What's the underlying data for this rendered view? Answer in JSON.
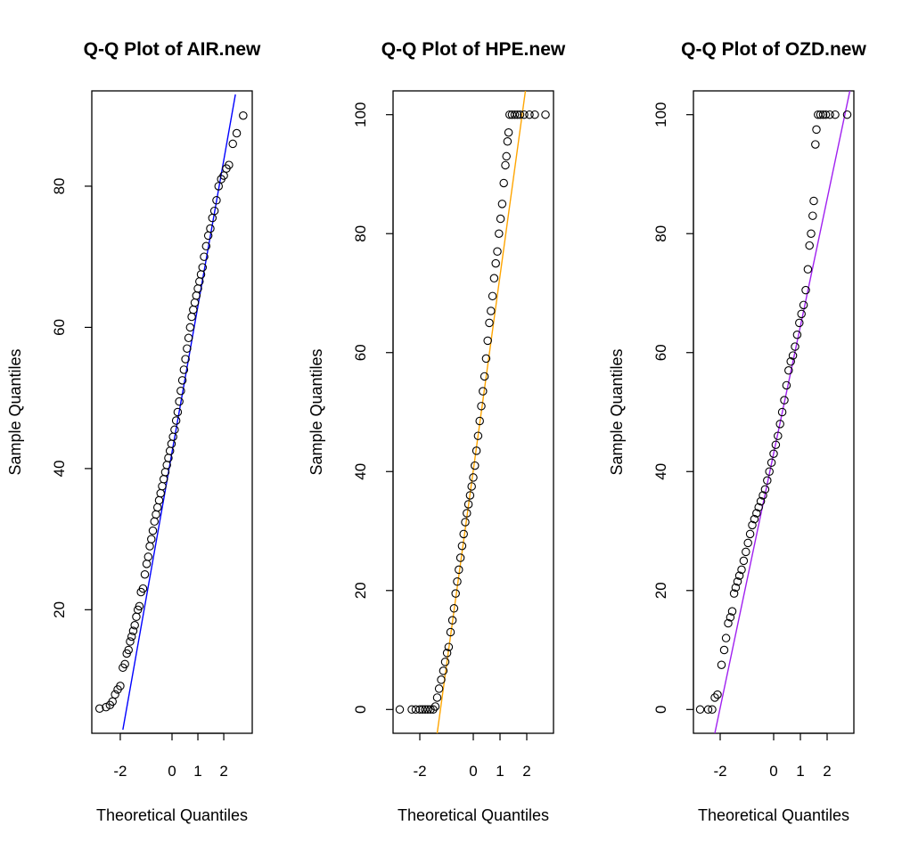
{
  "chart_data": [
    {
      "type": "scatter",
      "title": "Q-Q Plot of AIR.new",
      "xlabel": "Theoretical Quantiles",
      "ylabel": "Sample Quantiles",
      "xlim": [
        -3.1,
        3.1
      ],
      "ylim": [
        2.5,
        93.5
      ],
      "xticks": [
        -2,
        0,
        1,
        2
      ],
      "yticks": [
        20,
        40,
        60,
        80
      ],
      "line_color": "#0000ff",
      "qqline": {
        "points": [
          [
            -1.9,
            3
          ],
          [
            2.45,
            93
          ]
        ]
      },
      "points": [
        [
          -2.8,
          6.0
        ],
        [
          -2.55,
          6.2
        ],
        [
          -2.4,
          6.5
        ],
        [
          -2.3,
          7.0
        ],
        [
          -2.2,
          8.0
        ],
        [
          -2.1,
          8.7
        ],
        [
          -2.0,
          9.2
        ],
        [
          -1.9,
          11.8
        ],
        [
          -1.82,
          12.3
        ],
        [
          -1.75,
          13.8
        ],
        [
          -1.68,
          14.3
        ],
        [
          -1.62,
          15.5
        ],
        [
          -1.56,
          16.2
        ],
        [
          -1.5,
          17.0
        ],
        [
          -1.44,
          17.8
        ],
        [
          -1.38,
          19.0
        ],
        [
          -1.32,
          20.0
        ],
        [
          -1.26,
          20.5
        ],
        [
          -1.2,
          22.5
        ],
        [
          -1.12,
          23.0
        ],
        [
          -1.05,
          25.0
        ],
        [
          -0.98,
          26.5
        ],
        [
          -0.92,
          27.5
        ],
        [
          -0.86,
          29.0
        ],
        [
          -0.8,
          30.0
        ],
        [
          -0.74,
          31.2
        ],
        [
          -0.68,
          32.5
        ],
        [
          -0.62,
          33.5
        ],
        [
          -0.56,
          34.5
        ],
        [
          -0.5,
          35.5
        ],
        [
          -0.44,
          36.5
        ],
        [
          -0.38,
          37.5
        ],
        [
          -0.32,
          38.5
        ],
        [
          -0.26,
          39.5
        ],
        [
          -0.2,
          40.5
        ],
        [
          -0.14,
          41.5
        ],
        [
          -0.08,
          42.5
        ],
        [
          -0.02,
          43.5
        ],
        [
          0.04,
          44.5
        ],
        [
          0.1,
          45.5
        ],
        [
          0.16,
          46.8
        ],
        [
          0.22,
          48.0
        ],
        [
          0.28,
          49.5
        ],
        [
          0.34,
          51.0
        ],
        [
          0.4,
          52.5
        ],
        [
          0.46,
          54.0
        ],
        [
          0.52,
          55.5
        ],
        [
          0.58,
          57.0
        ],
        [
          0.64,
          58.5
        ],
        [
          0.7,
          60.0
        ],
        [
          0.76,
          61.5
        ],
        [
          0.82,
          62.5
        ],
        [
          0.88,
          63.5
        ],
        [
          0.94,
          64.5
        ],
        [
          1.0,
          65.5
        ],
        [
          1.06,
          66.5
        ],
        [
          1.12,
          67.5
        ],
        [
          1.18,
          68.5
        ],
        [
          1.24,
          70.0
        ],
        [
          1.32,
          71.5
        ],
        [
          1.4,
          73.0
        ],
        [
          1.48,
          74.0
        ],
        [
          1.56,
          75.5
        ],
        [
          1.64,
          76.5
        ],
        [
          1.72,
          78.0
        ],
        [
          1.8,
          80.0
        ],
        [
          1.9,
          81.0
        ],
        [
          2.0,
          81.5
        ],
        [
          2.1,
          82.5
        ],
        [
          2.2,
          83.0
        ],
        [
          2.35,
          86.0
        ],
        [
          2.5,
          87.5
        ],
        [
          2.75,
          90.0
        ]
      ]
    },
    {
      "type": "scatter",
      "title": "Q-Q Plot of HPE.new",
      "xlabel": "Theoretical Quantiles",
      "ylabel": "Sample Quantiles",
      "xlim": [
        -3.0,
        3.0
      ],
      "ylim": [
        -4,
        104
      ],
      "xticks": [
        -2,
        0,
        1,
        2
      ],
      "yticks": [
        0,
        20,
        40,
        60,
        80,
        100
      ],
      "line_color": "#ffa500",
      "qqline": {
        "points": [
          [
            -1.35,
            -4
          ],
          [
            1.95,
            104
          ]
        ]
      },
      "points": [
        [
          -2.75,
          0
        ],
        [
          -2.3,
          0
        ],
        [
          -2.15,
          0
        ],
        [
          -2.0,
          0
        ],
        [
          -1.9,
          0
        ],
        [
          -1.8,
          0
        ],
        [
          -1.7,
          0
        ],
        [
          -1.6,
          0
        ],
        [
          -1.5,
          0
        ],
        [
          -1.42,
          0.5
        ],
        [
          -1.35,
          2.0
        ],
        [
          -1.28,
          3.5
        ],
        [
          -1.2,
          5.0
        ],
        [
          -1.12,
          6.5
        ],
        [
          -1.05,
          8.0
        ],
        [
          -0.98,
          9.5
        ],
        [
          -0.92,
          10.5
        ],
        [
          -0.85,
          13.0
        ],
        [
          -0.78,
          15.0
        ],
        [
          -0.72,
          17.0
        ],
        [
          -0.66,
          19.5
        ],
        [
          -0.6,
          21.5
        ],
        [
          -0.54,
          23.5
        ],
        [
          -0.48,
          25.5
        ],
        [
          -0.42,
          27.5
        ],
        [
          -0.36,
          29.5
        ],
        [
          -0.3,
          31.5
        ],
        [
          -0.24,
          33.0
        ],
        [
          -0.18,
          34.5
        ],
        [
          -0.12,
          36.0
        ],
        [
          -0.06,
          37.5
        ],
        [
          0.0,
          39.0
        ],
        [
          0.06,
          41.0
        ],
        [
          0.12,
          43.5
        ],
        [
          0.18,
          46.0
        ],
        [
          0.24,
          48.5
        ],
        [
          0.3,
          51.0
        ],
        [
          0.36,
          53.5
        ],
        [
          0.42,
          56.0
        ],
        [
          0.48,
          59.0
        ],
        [
          0.54,
          62.0
        ],
        [
          0.6,
          65.0
        ],
        [
          0.66,
          67.0
        ],
        [
          0.72,
          69.5
        ],
        [
          0.78,
          72.5
        ],
        [
          0.84,
          75.0
        ],
        [
          0.9,
          77.0
        ],
        [
          0.96,
          80.0
        ],
        [
          1.02,
          82.5
        ],
        [
          1.08,
          85.0
        ],
        [
          1.14,
          88.5
        ],
        [
          1.2,
          91.5
        ],
        [
          1.24,
          93.0
        ],
        [
          1.28,
          95.5
        ],
        [
          1.32,
          97.0
        ],
        [
          1.36,
          100
        ],
        [
          1.45,
          100
        ],
        [
          1.55,
          100
        ],
        [
          1.65,
          100
        ],
        [
          1.75,
          100
        ],
        [
          1.9,
          100
        ],
        [
          2.1,
          100
        ],
        [
          2.3,
          100
        ],
        [
          2.7,
          100
        ]
      ]
    },
    {
      "type": "scatter",
      "title": "Q-Q Plot of OZD.new",
      "xlabel": "Theoretical Quantiles",
      "ylabel": "Sample Quantiles",
      "xlim": [
        -3.0,
        3.0
      ],
      "ylim": [
        -4,
        104
      ],
      "xticks": [
        -2,
        0,
        1,
        2
      ],
      "yticks": [
        0,
        20,
        40,
        60,
        80,
        100
      ],
      "line_color": "#a020f0",
      "qqline": {
        "points": [
          [
            -2.2,
            -4
          ],
          [
            2.85,
            104
          ]
        ]
      },
      "points": [
        [
          -2.75,
          0
        ],
        [
          -2.45,
          0
        ],
        [
          -2.3,
          0
        ],
        [
          -2.2,
          2.0
        ],
        [
          -2.1,
          2.5
        ],
        [
          -1.95,
          7.5
        ],
        [
          -1.85,
          10.0
        ],
        [
          -1.78,
          12.0
        ],
        [
          -1.7,
          14.5
        ],
        [
          -1.62,
          15.5
        ],
        [
          -1.55,
          16.5
        ],
        [
          -1.48,
          19.5
        ],
        [
          -1.42,
          20.5
        ],
        [
          -1.35,
          21.5
        ],
        [
          -1.28,
          22.5
        ],
        [
          -1.2,
          23.5
        ],
        [
          -1.12,
          25.0
        ],
        [
          -1.04,
          26.5
        ],
        [
          -0.96,
          28.0
        ],
        [
          -0.88,
          29.5
        ],
        [
          -0.8,
          31.0
        ],
        [
          -0.72,
          32.0
        ],
        [
          -0.64,
          33.0
        ],
        [
          -0.56,
          34.0
        ],
        [
          -0.48,
          35.0
        ],
        [
          -0.4,
          36.0
        ],
        [
          -0.32,
          37.0
        ],
        [
          -0.24,
          38.5
        ],
        [
          -0.16,
          40.0
        ],
        [
          -0.08,
          41.5
        ],
        [
          0.0,
          43.0
        ],
        [
          0.08,
          44.5
        ],
        [
          0.16,
          46.0
        ],
        [
          0.24,
          48.0
        ],
        [
          0.32,
          50.0
        ],
        [
          0.4,
          52.0
        ],
        [
          0.48,
          54.5
        ],
        [
          0.56,
          57.0
        ],
        [
          0.64,
          58.5
        ],
        [
          0.72,
          59.5
        ],
        [
          0.8,
          61.0
        ],
        [
          0.88,
          63.0
        ],
        [
          0.96,
          65.0
        ],
        [
          1.04,
          66.5
        ],
        [
          1.12,
          68.0
        ],
        [
          1.2,
          70.5
        ],
        [
          1.28,
          74.0
        ],
        [
          1.34,
          78.0
        ],
        [
          1.4,
          80.0
        ],
        [
          1.46,
          83.0
        ],
        [
          1.5,
          85.5
        ],
        [
          1.56,
          95.0
        ],
        [
          1.6,
          97.5
        ],
        [
          1.66,
          100
        ],
        [
          1.75,
          100
        ],
        [
          1.85,
          100
        ],
        [
          1.95,
          100
        ],
        [
          2.1,
          100
        ],
        [
          2.3,
          100
        ],
        [
          2.75,
          100
        ]
      ]
    }
  ]
}
